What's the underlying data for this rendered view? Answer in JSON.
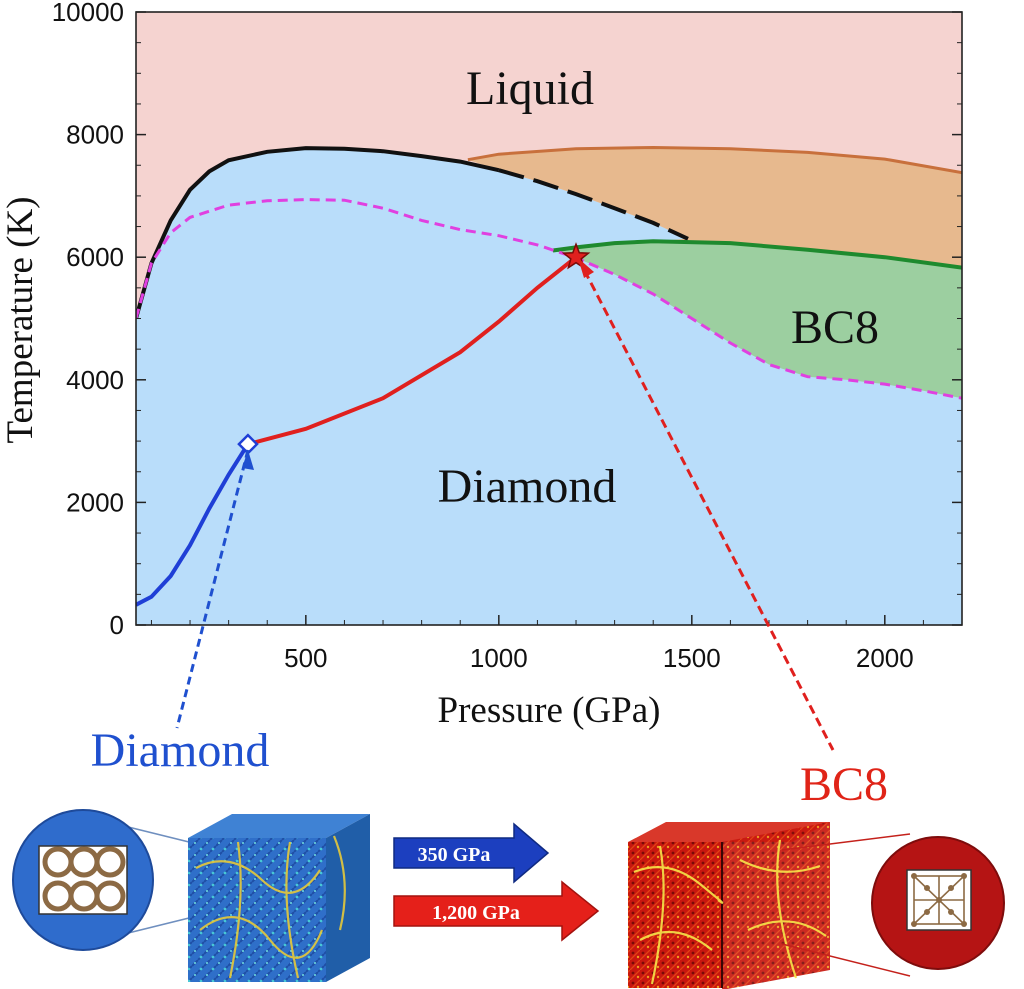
{
  "chart_data": {
    "type": "area",
    "xlabel": "Pressure (GPa)",
    "ylabel": "Temperature (K)",
    "xlim": [
      60,
      2200
    ],
    "ylim": [
      0,
      10000
    ],
    "xticks": [
      500,
      1000,
      1500,
      2000
    ],
    "yticks": [
      0,
      2000,
      4000,
      6000,
      8000,
      10000
    ],
    "region_labels": {
      "liquid": "Liquid",
      "bc8": "BC8",
      "diamond": "Diamond"
    },
    "region_colors": {
      "liquid": "#f5d3d0",
      "diamond": "#b9ddfa",
      "bc8": "#9ccfa0",
      "orange": "#e7b98e"
    },
    "melting_line": {
      "color": "#111111",
      "solid": [
        [
          60,
          5000
        ],
        [
          100,
          5900
        ],
        [
          150,
          6600
        ],
        [
          200,
          7100
        ],
        [
          250,
          7400
        ],
        [
          300,
          7580
        ],
        [
          400,
          7720
        ],
        [
          500,
          7780
        ],
        [
          600,
          7770
        ],
        [
          700,
          7730
        ],
        [
          800,
          7650
        ],
        [
          900,
          7560
        ],
        [
          1000,
          7420
        ]
      ],
      "dashed": [
        [
          1000,
          7420
        ],
        [
          1100,
          7240
        ],
        [
          1200,
          7030
        ],
        [
          1300,
          6800
        ],
        [
          1400,
          6560
        ],
        [
          1490,
          6300
        ]
      ]
    },
    "upper_phase_boundary": {
      "color": "#c8703c",
      "points": [
        [
          920,
          7590
        ],
        [
          1000,
          7680
        ],
        [
          1200,
          7770
        ],
        [
          1400,
          7790
        ],
        [
          1600,
          7770
        ],
        [
          1800,
          7710
        ],
        [
          2000,
          7600
        ],
        [
          2200,
          7380
        ]
      ]
    },
    "bc8_upper_boundary": {
      "color": "#1e8a2e",
      "points": [
        [
          1140,
          6110
        ],
        [
          1200,
          6160
        ],
        [
          1300,
          6230
        ],
        [
          1400,
          6260
        ],
        [
          1600,
          6230
        ],
        [
          1800,
          6120
        ],
        [
          2000,
          6000
        ],
        [
          2200,
          5830
        ]
      ]
    },
    "magenta_dashed_line": {
      "color": "#e040e0",
      "points": [
        [
          60,
          5000
        ],
        [
          100,
          5900
        ],
        [
          150,
          6400
        ],
        [
          200,
          6650
        ],
        [
          300,
          6850
        ],
        [
          400,
          6920
        ],
        [
          500,
          6940
        ],
        [
          600,
          6930
        ],
        [
          700,
          6800
        ],
        [
          800,
          6600
        ],
        [
          900,
          6450
        ],
        [
          1000,
          6350
        ],
        [
          1100,
          6200
        ],
        [
          1200,
          5990
        ],
        [
          1300,
          5720
        ],
        [
          1400,
          5400
        ],
        [
          1500,
          5000
        ],
        [
          1600,
          4600
        ],
        [
          1700,
          4250
        ],
        [
          1800,
          4050
        ],
        [
          1900,
          4000
        ],
        [
          2000,
          3930
        ],
        [
          2100,
          3820
        ],
        [
          2200,
          3700
        ]
      ]
    },
    "blue_path": {
      "color": "#1f3fd6",
      "points": [
        [
          60,
          330
        ],
        [
          100,
          460
        ],
        [
          150,
          800
        ],
        [
          200,
          1300
        ],
        [
          250,
          1900
        ],
        [
          300,
          2450
        ],
        [
          350,
          2950
        ]
      ]
    },
    "red_path": {
      "color": "#e0201e",
      "points": [
        [
          350,
          2950
        ],
        [
          500,
          3200
        ],
        [
          700,
          3700
        ],
        [
          900,
          4450
        ],
        [
          1000,
          4950
        ],
        [
          1100,
          5500
        ],
        [
          1200,
          6000
        ]
      ]
    },
    "markers": [
      {
        "name": "diamond-marker",
        "shape": "diamond",
        "x": 350,
        "y": 2950,
        "color": "#1f3fd6"
      },
      {
        "name": "star-marker",
        "shape": "star",
        "x": 1200,
        "y": 6000,
        "color": "#e0201e"
      }
    ]
  },
  "bottom_panel": {
    "diamond_label": "Diamond",
    "bc8_label": "BC8",
    "arrow_350": "350 GPa",
    "arrow_1200": "1,200 GPa",
    "diamond_color": "#1f50cf",
    "bc8_color": "#e02418"
  }
}
